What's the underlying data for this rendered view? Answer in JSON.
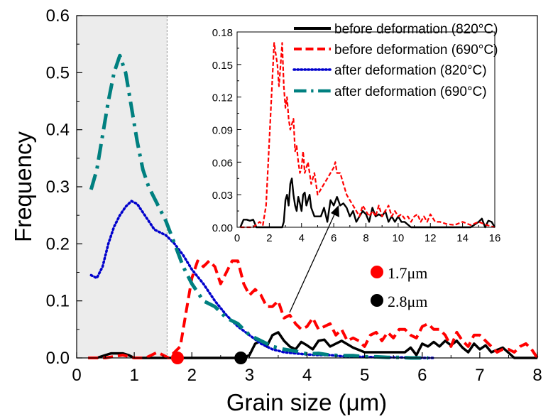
{
  "chart_data": [
    {
      "type": "line",
      "xlabel": "Grain size (μm)",
      "ylabel": "Frequency",
      "xlim": [
        0,
        8
      ],
      "ylim": [
        0,
        0.6
      ],
      "xticks": [
        "0",
        "1",
        "2",
        "3",
        "4",
        "5",
        "6",
        "7",
        "8"
      ],
      "yticks": [
        "0.0",
        "0.1",
        "0.2",
        "0.3",
        "0.4",
        "0.5",
        "0.6"
      ],
      "shaded_region": [
        0,
        1.57
      ],
      "series": [
        {
          "name": "before deformation (820°C)",
          "color": "#000000",
          "style": "solid",
          "x": [
            0.2,
            0.35,
            0.5,
            0.6,
            0.7,
            0.8,
            0.9,
            1.0,
            1.2,
            1.4,
            1.6,
            2.0,
            2.5,
            2.9,
            3.0,
            3.1,
            3.2,
            3.3,
            3.4,
            3.5,
            3.6,
            3.7,
            3.8,
            3.9,
            4.0,
            4.1,
            4.2,
            4.3,
            4.4,
            4.5,
            4.6,
            4.8,
            5.0,
            5.5,
            5.7,
            5.8,
            5.9,
            6.0,
            6.1,
            6.2,
            6.3,
            6.4,
            6.5,
            6.6,
            6.7,
            6.8,
            6.9,
            7.0,
            7.1,
            7.2,
            7.4,
            7.6,
            7.8,
            8.0
          ],
          "y": [
            0,
            0,
            0.005,
            0.008,
            0.008,
            0.008,
            0.005,
            0,
            0,
            0,
            0,
            0,
            0,
            0,
            0.005,
            0.025,
            0.03,
            0.02,
            0.04,
            0.045,
            0.03,
            0.02,
            0.015,
            0.028,
            0.022,
            0.015,
            0.03,
            0.032,
            0.02,
            0.025,
            0.03,
            0.018,
            0.01,
            0.01,
            0.01,
            0.018,
            0.005,
            0.025,
            0.02,
            0.028,
            0.02,
            0.03,
            0.022,
            0.03,
            0.018,
            0.01,
            0.025,
            0.015,
            0.022,
            0.01,
            0.018,
            0,
            0,
            0
          ]
        },
        {
          "name": "before deformation (690°C)",
          "color": "#ff0000",
          "style": "dashed",
          "x": [
            0.2,
            0.5,
            0.8,
            1.0,
            1.2,
            1.4,
            1.6,
            1.8,
            1.9,
            2.0,
            2.1,
            2.2,
            2.3,
            2.4,
            2.5,
            2.6,
            2.7,
            2.8,
            2.9,
            3.0,
            3.1,
            3.2,
            3.3,
            3.4,
            3.5,
            3.6,
            3.7,
            3.8,
            3.9,
            4.0,
            4.1,
            4.2,
            4.3,
            4.4,
            4.5,
            4.6,
            4.7,
            4.8,
            4.9,
            5.0,
            5.1,
            5.2,
            5.3,
            5.4,
            5.5,
            5.6,
            5.7,
            5.8,
            5.9,
            6.0,
            6.1,
            6.2,
            6.3,
            6.4,
            6.5,
            6.6,
            6.7,
            6.8,
            6.9,
            7.0,
            7.1,
            7.2,
            7.3,
            7.4,
            7.5,
            7.6,
            7.7,
            7.8,
            7.9,
            8.0
          ],
          "y": [
            0,
            0,
            0.005,
            0,
            0,
            0.01,
            0,
            0.02,
            0.08,
            0.14,
            0.17,
            0.16,
            0.17,
            0.16,
            0.13,
            0.15,
            0.17,
            0.17,
            0.13,
            0.11,
            0.12,
            0.11,
            0.09,
            0.09,
            0.1,
            0.07,
            0.075,
            0.06,
            0.05,
            0.055,
            0.07,
            0.05,
            0.055,
            0.06,
            0.04,
            0.05,
            0.03,
            0.035,
            0.03,
            0.02,
            0.04,
            0.045,
            0.03,
            0.045,
            0.035,
            0.05,
            0.05,
            0.04,
            0.035,
            0.055,
            0.06,
            0.05,
            0.05,
            0.04,
            0.02,
            0.045,
            0.03,
            0.02,
            0.04,
            0.04,
            0.03,
            0.02,
            0.01,
            0.015,
            0.015,
            0.01,
            0.02,
            0.025,
            0.015,
            0
          ]
        },
        {
          "name": "after deformation (820°C)",
          "color": "#0000cc",
          "style": "dotted",
          "x": [
            0.25,
            0.35,
            0.45,
            0.55,
            0.65,
            0.75,
            0.85,
            0.95,
            1.05,
            1.15,
            1.25,
            1.35,
            1.45,
            1.55,
            1.7,
            1.85,
            2.0,
            2.2,
            2.4,
            2.6,
            2.8,
            3.0,
            3.2,
            3.4,
            3.6,
            3.8,
            4.0,
            4.2,
            4.4,
            4.6,
            4.8,
            5.0,
            5.2,
            5.4,
            5.6,
            5.8,
            6.0,
            6.2
          ],
          "y": [
            0.145,
            0.14,
            0.16,
            0.2,
            0.23,
            0.25,
            0.265,
            0.275,
            0.27,
            0.255,
            0.24,
            0.225,
            0.22,
            0.215,
            0.2,
            0.18,
            0.155,
            0.13,
            0.1,
            0.075,
            0.055,
            0.04,
            0.025,
            0.015,
            0.01,
            0.008,
            0.006,
            0.005,
            0.005,
            0.003,
            0.002,
            0.002,
            0.001,
            0.001,
            0.001,
            0,
            0,
            0
          ]
        },
        {
          "name": "after deformation (690°C)",
          "color": "#008080",
          "style": "dash-dot",
          "x": [
            0.25,
            0.35,
            0.45,
            0.55,
            0.65,
            0.75,
            0.85,
            0.95,
            1.05,
            1.15,
            1.25,
            1.35,
            1.45,
            1.55,
            1.7,
            1.85,
            2.0,
            2.2,
            2.4,
            2.6,
            2.8,
            3.0,
            3.2,
            3.4,
            3.6,
            3.8,
            4.0,
            4.2,
            4.4,
            4.6,
            4.8,
            5.0,
            5.2,
            5.4,
            5.6,
            5.8,
            6.0,
            6.1
          ],
          "y": [
            0.295,
            0.33,
            0.39,
            0.45,
            0.5,
            0.53,
            0.5,
            0.44,
            0.38,
            0.33,
            0.3,
            0.28,
            0.26,
            0.24,
            0.2,
            0.16,
            0.13,
            0.1,
            0.09,
            0.07,
            0.06,
            0.04,
            0.03,
            0.02,
            0.015,
            0.012,
            0.007,
            0.008,
            0.005,
            0.004,
            0.004,
            0.002,
            0.002,
            0.001,
            0.001,
            0,
            0,
            0
          ]
        }
      ],
      "markers": [
        {
          "label": "1.7μm",
          "x": 1.75,
          "y": 0,
          "color": "#ff0000"
        },
        {
          "label": "2.8μm",
          "x": 2.85,
          "y": 0,
          "color": "#000000"
        }
      ]
    },
    {
      "type": "line",
      "note_inset": true,
      "xlim": [
        0,
        16
      ],
      "ylim": [
        0,
        0.18
      ],
      "xticks": [
        "0",
        "2",
        "4",
        "6",
        "8",
        "10",
        "12",
        "14",
        "16"
      ],
      "yticks": [
        "0.00",
        "0.03",
        "0.06",
        "0.09",
        "0.12",
        "0.15",
        "0.18"
      ],
      "series": [
        {
          "name": "before deformation (820°C)",
          "color": "#000000",
          "style": "solid",
          "x": [
            0.2,
            0.4,
            0.6,
            0.8,
            1.0,
            1.2,
            1.4,
            1.6,
            1.8,
            2.0,
            2.2,
            2.4,
            2.6,
            2.8,
            2.9,
            3.0,
            3.1,
            3.2,
            3.3,
            3.4,
            3.5,
            3.6,
            3.7,
            3.8,
            3.9,
            4.0,
            4.1,
            4.2,
            4.3,
            4.4,
            4.5,
            4.6,
            4.8,
            5.0,
            5.2,
            5.4,
            5.6,
            5.8,
            6.0,
            6.2,
            6.4,
            6.6,
            6.8,
            7.0,
            7.2,
            7.4,
            7.6,
            7.8,
            8.0,
            8.2,
            8.4,
            8.6,
            8.8,
            9.0,
            9.2,
            9.4,
            9.6,
            9.8,
            10.0,
            10.2,
            10.4,
            10.8,
            11.2,
            11.6,
            12.0,
            12.5,
            13.0,
            13.5,
            14.0,
            14.5,
            15.0,
            15.2,
            15.4,
            15.6,
            15.8,
            16.0
          ],
          "y": [
            0,
            0.007,
            0.007,
            0.006,
            0.007,
            0,
            0,
            0,
            0,
            0,
            0,
            0,
            0,
            0,
            0.005,
            0.025,
            0.03,
            0.02,
            0.04,
            0.045,
            0.03,
            0.02,
            0.015,
            0.028,
            0.022,
            0.015,
            0.03,
            0.032,
            0.02,
            0.025,
            0.03,
            0.018,
            0.01,
            0.01,
            0.01,
            0.018,
            0.005,
            0.025,
            0.02,
            0.028,
            0.02,
            0.022,
            0.018,
            0.01,
            0.015,
            0.005,
            0.01,
            0.015,
            0.012,
            0.005,
            0.018,
            0.01,
            0.012,
            0.01,
            0.015,
            0.005,
            0.01,
            0.005,
            0.01,
            0.005,
            0.005,
            0,
            0,
            0,
            0,
            0,
            0,
            0,
            0,
            0,
            0.005,
            0.008,
            0,
            0.006,
            0.005,
            0
          ]
        },
        {
          "name": "before deformation (690°C)",
          "color": "#ff0000",
          "style": "dashed",
          "x": [
            0.2,
            0.5,
            1.0,
            1.4,
            1.6,
            1.8,
            2.0,
            2.2,
            2.3,
            2.4,
            2.5,
            2.6,
            2.7,
            2.8,
            2.9,
            3.0,
            3.1,
            3.2,
            3.3,
            3.4,
            3.5,
            3.6,
            3.7,
            3.8,
            3.9,
            4.0,
            4.1,
            4.2,
            4.3,
            4.4,
            4.6,
            4.8,
            5.0,
            5.2,
            5.4,
            5.6,
            5.8,
            6.0,
            6.1,
            6.2,
            6.4,
            6.6,
            6.8,
            7.0,
            7.2,
            7.4,
            7.6,
            7.8,
            8.0,
            8.2,
            8.4,
            8.6,
            8.8,
            9.0,
            9.2,
            9.4,
            9.6,
            9.8,
            10.0,
            10.2,
            10.4,
            10.6,
            10.8,
            11.0,
            11.2,
            11.4,
            11.6,
            11.8,
            12.0,
            12.3,
            12.6,
            13.0,
            13.5,
            14.0,
            14.5,
            15.0,
            15.5,
            16.0
          ],
          "y": [
            0,
            0,
            0,
            0.005,
            0.002,
            0.02,
            0.08,
            0.14,
            0.17,
            0.16,
            0.15,
            0.13,
            0.15,
            0.17,
            0.13,
            0.11,
            0.12,
            0.1,
            0.09,
            0.095,
            0.1,
            0.07,
            0.075,
            0.06,
            0.05,
            0.055,
            0.07,
            0.05,
            0.055,
            0.06,
            0.04,
            0.05,
            0.03,
            0.035,
            0.04,
            0.045,
            0.05,
            0.055,
            0.06,
            0.05,
            0.05,
            0.04,
            0.03,
            0.025,
            0.02,
            0.015,
            0.01,
            0.02,
            0.015,
            0.01,
            0.015,
            0.01,
            0.02,
            0.01,
            0.015,
            0.02,
            0.01,
            0.015,
            0.01,
            0.012,
            0.008,
            0.01,
            0.005,
            0.01,
            0.012,
            0.005,
            0.01,
            0.005,
            0.012,
            0.005,
            0.005,
            0.003,
            0.002,
            0.005,
            0.002,
            0.005,
            0.002,
            0
          ]
        }
      ]
    }
  ],
  "legend": [
    "before deformation (820°C)",
    "before deformation (690°C)",
    "after deformation (820°C)",
    "after deformation (690°C)"
  ]
}
